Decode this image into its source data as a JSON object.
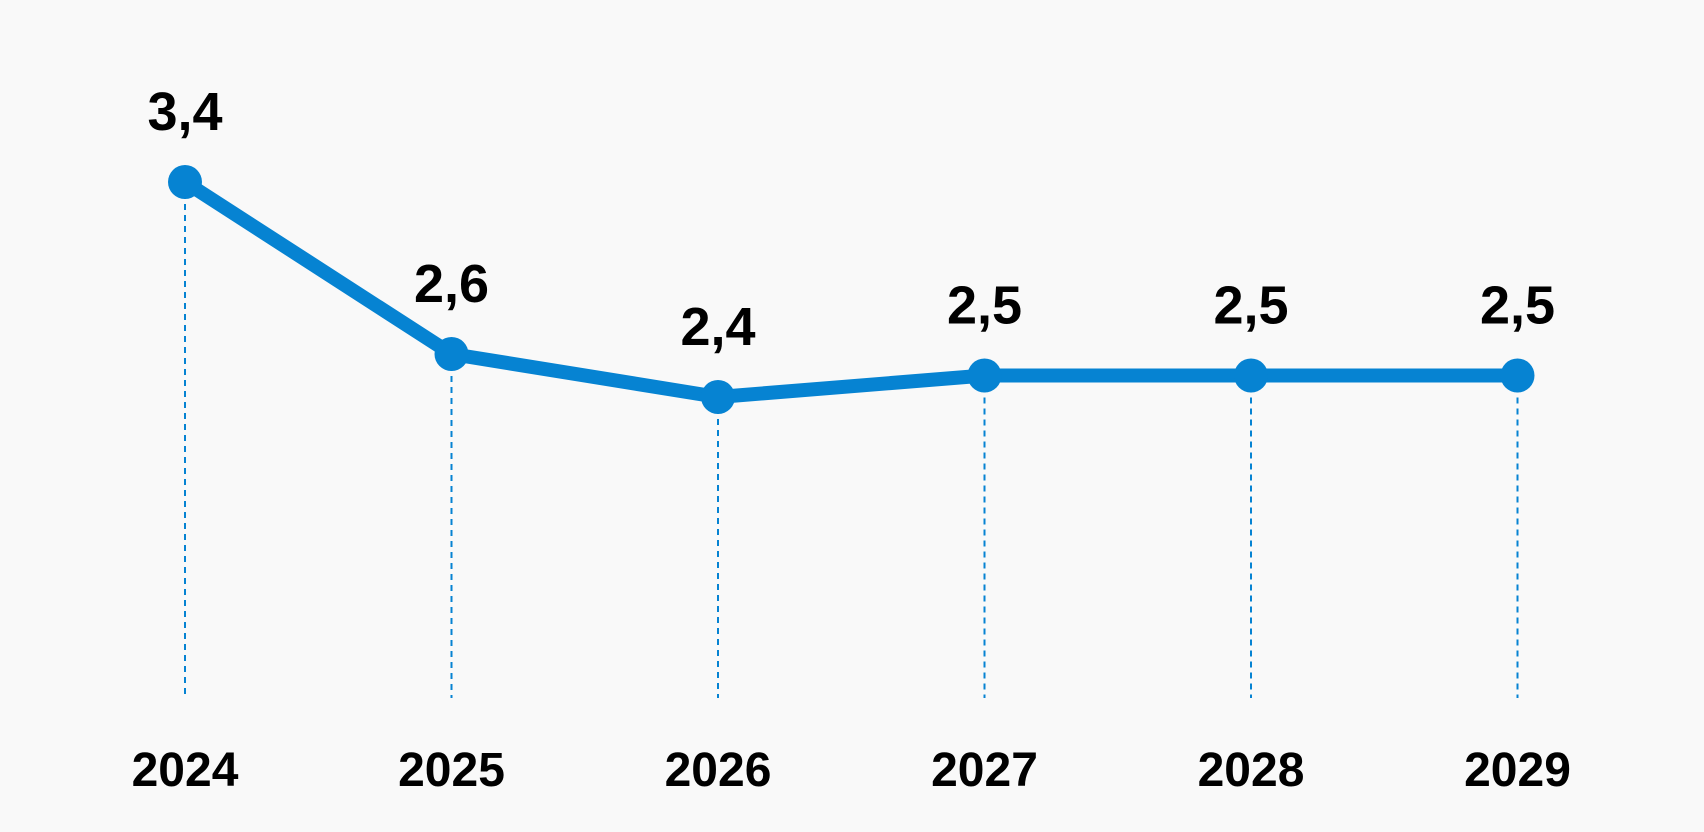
{
  "chart_data": {
    "type": "line",
    "categories": [
      "2024",
      "2025",
      "2026",
      "2027",
      "2028",
      "2029"
    ],
    "series": [
      {
        "values": [
          3.4,
          2.6,
          2.4,
          2.5,
          2.5,
          2.5
        ],
        "value_labels": [
          "3,4",
          "2,6",
          "2,4",
          "2,5",
          "2,5",
          "2,5"
        ]
      }
    ],
    "title": "",
    "xlabel": "",
    "ylabel": "",
    "grid": false,
    "legend": "none",
    "colors": {
      "line": "#0683d2",
      "guide": "#0683d2",
      "background": "#f9f9f9",
      "text": "#000000"
    }
  }
}
